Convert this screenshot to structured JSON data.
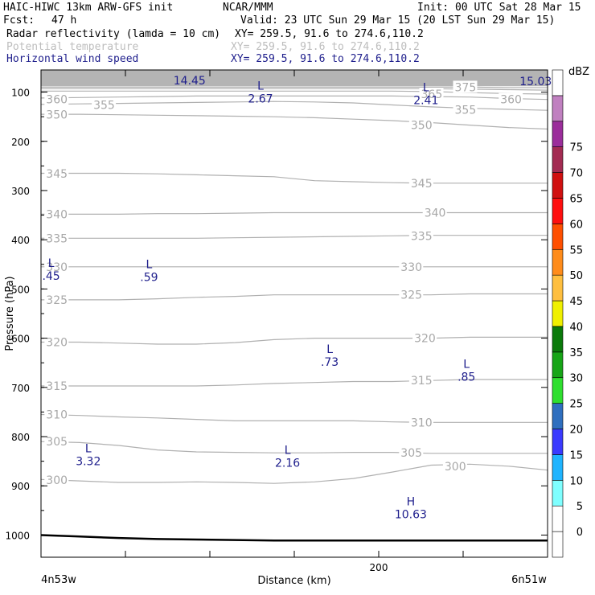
{
  "header": {
    "title": "HAIC-HIWC 13km ARW-GFS init",
    "org": "NCAR/MMM",
    "init": "Init: 00 UTC Sat 28 Mar 15",
    "fcst_label": "Fcst:",
    "fcst_value": "47 h",
    "valid": "Valid: 23 UTC Sun 29 Mar 15 (20 LST Sun 29 Mar 15)",
    "fields": [
      {
        "name": "Radar reflectivity (lamda = 10 cm)",
        "xy": "XY= 259.5, 91.6 to 274.6,110.2",
        "color": "#000000"
      },
      {
        "name": "Potential temperature",
        "xy": "XY= 259.5, 91.6 to 274.6,110.2",
        "color": "#bdbdbd"
      },
      {
        "name": "Horizontal wind speed",
        "xy": "XY= 259.5, 91.6 to 274.6,110.2",
        "color": "#1e1e8c"
      }
    ]
  },
  "chart_data": {
    "type": "cross-section contour",
    "ylabel": "Pressure (hPa)",
    "xlabel": "Distance (km)",
    "y_ticks": [
      100,
      200,
      300,
      400,
      500,
      600,
      700,
      800,
      900,
      1000
    ],
    "x_tick_labels": [
      {
        "x": 200,
        "label": "200"
      }
    ],
    "x_endpoints": {
      "left": "4n53w",
      "right": "6n51w"
    },
    "xlim": [
      0,
      300
    ],
    "ylim_hpa": [
      1045,
      55
    ],
    "theta_contours": [
      {
        "level": 300,
        "p": [
          887,
          890,
          893,
          893,
          892,
          893,
          895,
          892,
          885,
          872,
          858,
          856,
          860,
          868
        ]
      },
      {
        "level": 305,
        "p": [
          810,
          812,
          818,
          827,
          831,
          832,
          833,
          833,
          832,
          832,
          834,
          834,
          834,
          834
        ]
      },
      {
        "level": 310,
        "p": [
          755,
          757,
          760,
          762,
          765,
          768,
          768,
          768,
          768,
          770,
          771,
          771,
          771,
          771
        ]
      },
      {
        "level": 315,
        "p": [
          697,
          697,
          697,
          697,
          697,
          695,
          692,
          690,
          688,
          688,
          686,
          684,
          684,
          684
        ]
      },
      {
        "level": 320,
        "p": [
          608,
          608,
          610,
          612,
          612,
          609,
          603,
          600,
          600,
          600,
          600,
          598,
          598,
          598
        ]
      },
      {
        "level": 325,
        "p": [
          522,
          522,
          522,
          520,
          517,
          515,
          512,
          512,
          512,
          512,
          512,
          510,
          510,
          510
        ]
      },
      {
        "level": 330,
        "p": [
          455,
          455,
          455,
          455,
          455,
          455,
          455,
          455,
          455,
          455,
          455,
          455,
          455,
          455
        ]
      },
      {
        "level": 335,
        "p": [
          397,
          397,
          397,
          397,
          397,
          396,
          395,
          394,
          393,
          392,
          391,
          391,
          391,
          391
        ]
      },
      {
        "level": 340,
        "p": [
          348,
          348,
          348,
          347,
          347,
          346,
          345,
          345,
          345,
          345,
          345,
          345,
          345,
          345
        ]
      },
      {
        "level": 345,
        "p": [
          265,
          265,
          265,
          266,
          268,
          270,
          272,
          280,
          282,
          284,
          285,
          285,
          285,
          285
        ]
      },
      {
        "level": 350,
        "p": [
          145,
          145,
          146,
          147,
          148,
          149,
          150,
          152,
          155,
          158,
          162,
          167,
          172,
          175
        ]
      },
      {
        "level": 355,
        "p": [
          125,
          124,
          123,
          122,
          121,
          120,
          119,
          120,
          122,
          126,
          130,
          133,
          135,
          137
        ]
      },
      {
        "level": 360,
        "p": [
          112,
          111,
          110,
          109,
          108,
          108,
          108,
          108,
          108,
          108,
          109,
          110,
          113,
          115
        ]
      },
      {
        "level": 365,
        "p": [
          98,
          98,
          98,
          98,
          98,
          98,
          98,
          98,
          98,
          98,
          99,
          101,
          103,
          104
        ]
      },
      {
        "level": 370,
        "p": [
          93,
          93,
          93,
          93,
          93,
          93,
          93,
          93,
          93,
          93,
          93,
          94,
          95,
          96
        ]
      },
      {
        "level": 375,
        "p": [
          90,
          90,
          90,
          90,
          90,
          90,
          90,
          90,
          90,
          90,
          90,
          90,
          91,
          91
        ]
      }
    ],
    "contour_x": [
      0,
      23,
      46,
      69,
      92,
      115,
      138,
      162,
      185,
      208,
      231,
      254,
      277,
      300
    ],
    "theta_labels": [
      {
        "text": "360",
        "x": 3,
        "p": 115
      },
      {
        "text": "355",
        "x": 31,
        "p": 126
      },
      {
        "text": "350",
        "x": 3,
        "p": 146
      },
      {
        "text": "345",
        "x": 3,
        "p": 266
      },
      {
        "text": "340",
        "x": 3,
        "p": 348
      },
      {
        "text": "335",
        "x": 3,
        "p": 397
      },
      {
        "text": "330",
        "x": 3,
        "p": 455
      },
      {
        "text": "325",
        "x": 3,
        "p": 522
      },
      {
        "text": "320",
        "x": 3,
        "p": 608
      },
      {
        "text": "315",
        "x": 3,
        "p": 697
      },
      {
        "text": "310",
        "x": 3,
        "p": 755
      },
      {
        "text": "305",
        "x": 3,
        "p": 810
      },
      {
        "text": "300",
        "x": 3,
        "p": 888
      },
      {
        "text": "350",
        "x": 219,
        "p": 167
      },
      {
        "text": "345",
        "x": 219,
        "p": 285
      },
      {
        "text": "340",
        "x": 227,
        "p": 345
      },
      {
        "text": "335",
        "x": 219,
        "p": 392
      },
      {
        "text": "330",
        "x": 213,
        "p": 455
      },
      {
        "text": "325",
        "x": 213,
        "p": 512
      },
      {
        "text": "320",
        "x": 221,
        "p": 600
      },
      {
        "text": "315",
        "x": 219,
        "p": 686
      },
      {
        "text": "310",
        "x": 219,
        "p": 771
      },
      {
        "text": "305",
        "x": 213,
        "p": 833
      },
      {
        "text": "300",
        "x": 239,
        "p": 860
      },
      {
        "text": "375",
        "x": 245,
        "p": 90
      },
      {
        "text": "365",
        "x": 225,
        "p": 104
      },
      {
        "text": "355",
        "x": 245,
        "p": 136
      },
      {
        "text": "360",
        "x": 272,
        "p": 115
      }
    ],
    "wind_markers": [
      {
        "sym": "L",
        "value": "2.67",
        "x": 130,
        "p": 95
      },
      {
        "sym": "L",
        "value": "2.41",
        "x": 228,
        "p": 98
      },
      {
        "sym": "L",
        "value": ".45",
        "x": 6,
        "p": 455
      },
      {
        "sym": "L",
        "value": ".59",
        "x": 64,
        "p": 458
      },
      {
        "sym": "L",
        "value": ".73",
        "x": 171,
        "p": 630
      },
      {
        "sym": "L",
        "value": ".85",
        "x": 252,
        "p": 660
      },
      {
        "sym": "L",
        "value": "3.32",
        "x": 28,
        "p": 832
      },
      {
        "sym": "L",
        "value": "2.16",
        "x": 146,
        "p": 835
      },
      {
        "sym": "H",
        "value": "10.63",
        "x": 219,
        "p": 940
      }
    ],
    "edge_values": [
      {
        "value": "14.45",
        "x": 88,
        "p": 58
      },
      {
        "value": "15.03",
        "x": 293,
        "p": 60
      }
    ],
    "terrain_hpa": [
      1000,
      1003,
      1006,
      1008,
      1009,
      1010,
      1011,
      1011,
      1011,
      1011,
      1011,
      1011,
      1011,
      1011
    ],
    "colorbar": {
      "unit": "dBZ",
      "levels": [
        "-5",
        "0",
        "5",
        "10",
        "15",
        "20",
        "25",
        "30",
        "35",
        "40",
        "45",
        "50",
        "55",
        "60",
        "65",
        "70",
        "75",
        "80"
      ],
      "labels": [
        "0",
        "5",
        "10",
        "15",
        "20",
        "25",
        "30",
        "35",
        "40",
        "45",
        "50",
        "55",
        "60",
        "65",
        "70",
        "75"
      ],
      "colors": [
        "#ffffff",
        "#ffffff",
        "#7fffff",
        "#1fb4ff",
        "#3a3aff",
        "#2f6fbf",
        "#2fdf2f",
        "#17a517",
        "#0a7a0a",
        "#f0f000",
        "#ffbf3f",
        "#ff8c1a",
        "#ff4f00",
        "#ff0f0f",
        "#d01010",
        "#a32b52",
        "#9b2d9b",
        "#c080c0",
        "#ffffff"
      ]
    }
  }
}
